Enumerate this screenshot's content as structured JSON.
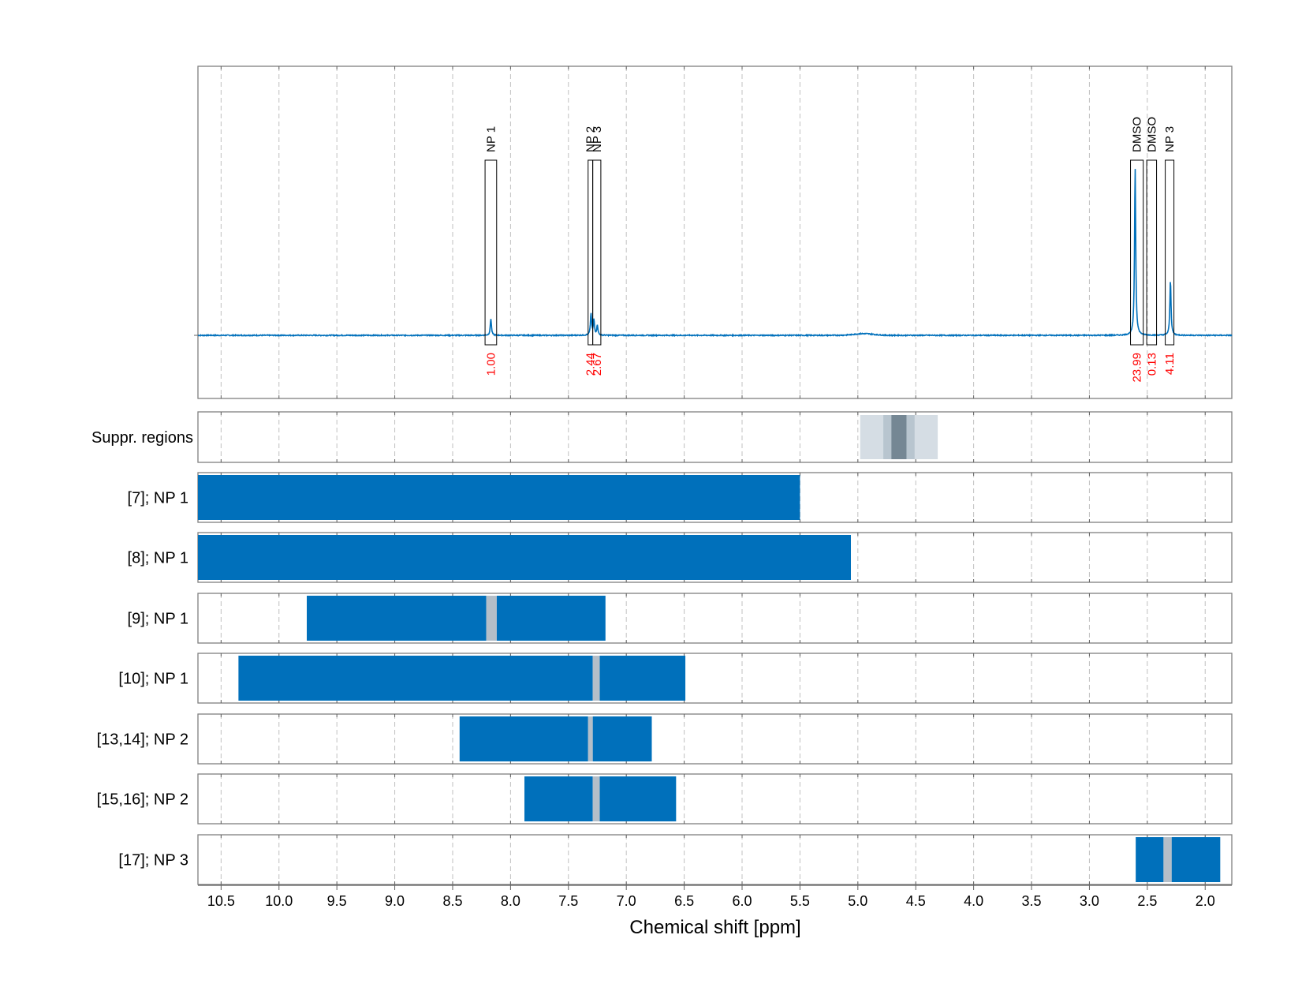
{
  "chart_data": {
    "type": "area",
    "xlabel": "Chemical shift [ppm]",
    "xlim": [
      10.7,
      1.77
    ],
    "x_ticks": [
      10.5,
      10.0,
      9.5,
      9.0,
      8.5,
      8.0,
      7.5,
      7.0,
      6.5,
      6.0,
      5.5,
      5.0,
      4.5,
      4.0,
      3.5,
      3.0,
      2.5,
      2.0
    ],
    "x_tick_labels": [
      "10.5",
      "10.0",
      "9.5",
      "9.0",
      "8.5",
      "8.0",
      "7.5",
      "7.0",
      "6.5",
      "6.0",
      "5.5",
      "5.0",
      "4.5",
      "4.0",
      "3.5",
      "3.0",
      "2.5",
      "2.0"
    ],
    "grid": true,
    "colors": {
      "spectrum": "#0070bb",
      "range_bar": "#0070bb",
      "gap": "#b4bec8",
      "suppr_outer": "#d5dde4",
      "suppr_mid": "#b8c5cf",
      "suppr_inner": "#758794",
      "integral_text": "#ff0000",
      "frame": "#808080",
      "grid": "#c0c0c0"
    },
    "spectrum": {
      "baseline": 0,
      "ymax": 1.0,
      "peaks": [
        {
          "x": 8.17,
          "height": 0.1,
          "width": 0.006
        },
        {
          "x": 7.305,
          "height": 0.13,
          "width": 0.006
        },
        {
          "x": 7.28,
          "height": 0.09,
          "width": 0.006
        },
        {
          "x": 7.25,
          "height": 0.06,
          "width": 0.006
        },
        {
          "x": 2.605,
          "height": 1.0,
          "width": 0.006
        },
        {
          "x": 2.3,
          "height": 0.33,
          "width": 0.006
        }
      ],
      "hump": {
        "x": 4.95,
        "height": 0.01,
        "width": 0.12
      }
    },
    "integration_regions": [
      {
        "label": "NP 1",
        "integral": "1.00",
        "x_start": 8.22,
        "x_end": 8.12
      },
      {
        "label": "NP 2",
        "integral": "2.44",
        "x_start": 7.33,
        "x_end": 7.29
      },
      {
        "label": "NP 3",
        "integral": "2.67",
        "x_start": 7.29,
        "x_end": 7.22
      },
      {
        "label": "DMSO",
        "integral": "23.99",
        "x_start": 2.645,
        "x_end": 2.535
      },
      {
        "label": "DMSO",
        "integral": "0.13",
        "x_start": 2.505,
        "x_end": 2.42
      },
      {
        "label": "NP 3",
        "integral": "4.11",
        "x_start": 2.345,
        "x_end": 2.27
      }
    ],
    "suppression_label": "Suppr. regions",
    "suppression_regions": [
      {
        "x_start": 4.98,
        "x_end": 4.31,
        "level": "outer"
      },
      {
        "x_start": 4.78,
        "x_end": 4.51,
        "level": "mid"
      },
      {
        "x_start": 4.71,
        "x_end": 4.58,
        "level": "inner"
      }
    ],
    "range_rows": [
      {
        "label": "[7]; NP 1",
        "segments": [
          [
            10.7,
            5.5
          ]
        ],
        "gaps": []
      },
      {
        "label": "[8]; NP 1",
        "segments": [
          [
            10.7,
            5.06
          ]
        ],
        "gaps": []
      },
      {
        "label": "[9]; NP 1",
        "segments": [
          [
            9.76,
            8.21
          ],
          [
            8.12,
            7.18
          ]
        ],
        "gaps": [
          [
            8.21,
            8.12
          ]
        ]
      },
      {
        "label": "[10]; NP 1",
        "segments": [
          [
            10.35,
            7.29
          ],
          [
            7.23,
            6.49
          ]
        ],
        "gaps": [
          [
            7.29,
            7.23
          ]
        ]
      },
      {
        "label": "[13,14]; NP 2",
        "segments": [
          [
            8.44,
            7.33
          ],
          [
            7.29,
            6.78
          ]
        ],
        "gaps": [
          [
            7.33,
            7.29
          ]
        ]
      },
      {
        "label": "[15,16]; NP 2",
        "segments": [
          [
            7.88,
            7.29
          ],
          [
            7.23,
            6.57
          ]
        ],
        "gaps": [
          [
            7.29,
            7.23
          ]
        ]
      },
      {
        "label": "[17]; NP 3",
        "segments": [
          [
            2.6,
            2.36
          ],
          [
            2.29,
            1.87
          ]
        ],
        "gaps": [
          [
            2.36,
            2.29
          ]
        ]
      }
    ]
  }
}
